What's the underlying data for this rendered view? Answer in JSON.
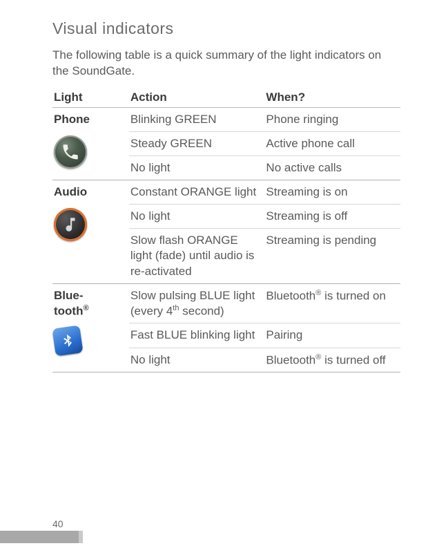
{
  "title": "Visual indicators",
  "intro": "The following table is a quick summary of the light indicators on the SoundGate.",
  "headers": {
    "light": "Light",
    "action": "Action",
    "when": "When?"
  },
  "groups": [
    {
      "light": "Phone",
      "icon": "phone-icon",
      "rows": [
        {
          "action": "Blinking GREEN",
          "when": "Phone ringing"
        },
        {
          "action": "Steady GREEN",
          "when": "Active phone call"
        },
        {
          "action": "No light",
          "when": "No active calls"
        }
      ]
    },
    {
      "light": "Audio",
      "icon": "audio-icon",
      "rows": [
        {
          "action": "Constant ORANGE light",
          "when": "Streaming is on"
        },
        {
          "action": "No light",
          "when": "Streaming is off"
        },
        {
          "action": "Slow flash ORANGE light (fade) until audio is re-activated",
          "when": "Streaming is pending"
        }
      ]
    },
    {
      "light_html": "Blue-<br>tooth<sup>®</sup>",
      "icon": "bt-icon",
      "rows": [
        {
          "action_html": "Slow pulsing BLUE light (every 4<sup>th</sup> second)",
          "when_html": "Bluetooth<sup>®</sup> is turned on"
        },
        {
          "action": "Fast BLUE blinking light",
          "when": "Pairing"
        },
        {
          "action": "No light",
          "when_html": "Bluetooth<sup>®</sup> is turned off"
        }
      ]
    }
  ],
  "page_number": "40",
  "colors": {
    "text": "#5a5a5a",
    "heading": "#6b6b6b",
    "strong": "#3a3a3a",
    "rule_major": "#b0b0b0",
    "rule_minor": "#d6d6d6",
    "footer_bar": "#a8a8a8"
  }
}
